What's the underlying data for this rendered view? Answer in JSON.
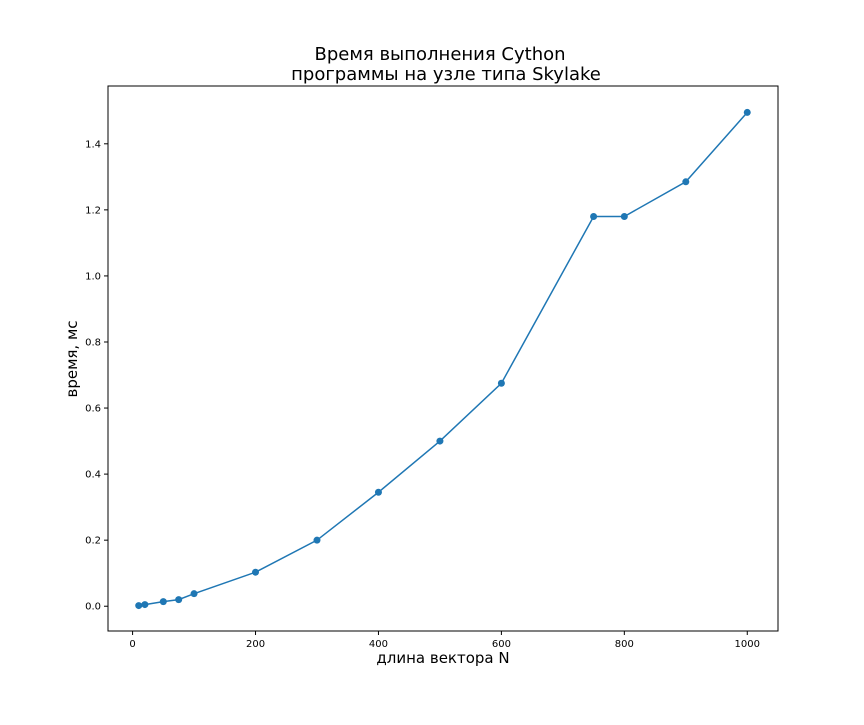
{
  "chart_data": {
    "type": "line",
    "title_lines": [
      "Время выполнения Cython",
      "программы на узле типа Skylake"
    ],
    "xlabel": "длина вектора N",
    "ylabel": "время, мс",
    "xlim": [
      -40,
      1050
    ],
    "ylim": [
      -0.075,
      1.575
    ],
    "x_ticks": [
      0,
      200,
      400,
      600,
      800,
      1000
    ],
    "y_ticks": [
      0.0,
      0.2,
      0.4,
      0.6,
      0.8,
      1.0,
      1.2,
      1.4
    ],
    "x_tick_labels": [
      "0",
      "200",
      "400",
      "600",
      "800",
      "1000"
    ],
    "y_tick_labels": [
      "0.0",
      "0.2",
      "0.4",
      "0.6",
      "0.8",
      "1.0",
      "1.2",
      "1.4"
    ],
    "grid": false,
    "legend": false,
    "color": "#1f77b4",
    "series": [
      {
        "x": [
          10,
          20,
          50,
          75,
          100,
          200,
          300,
          400,
          500,
          600,
          750,
          800,
          900,
          1000
        ],
        "y": [
          0.002,
          0.005,
          0.014,
          0.02,
          0.038,
          0.103,
          0.2,
          0.345,
          0.5,
          0.675,
          1.18,
          1.18,
          1.285,
          1.495
        ]
      }
    ]
  }
}
